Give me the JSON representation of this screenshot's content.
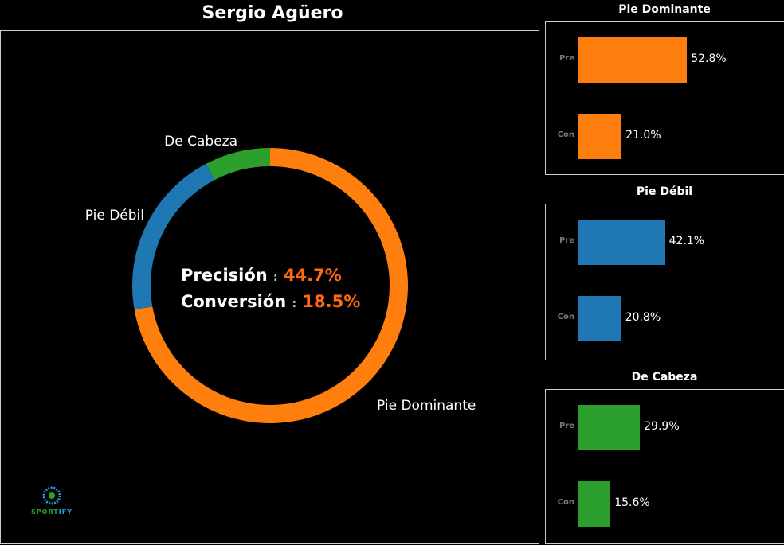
{
  "title": "Sergio Agüero",
  "colors": {
    "Pie Dominante": "#ff7f0e",
    "Pie Débil": "#1f77b4",
    "De Cabeza": "#2ca02c",
    "highlight": "#ff6a13"
  },
  "center": {
    "precision_label": "Precisión",
    "precision_value": "44.7%",
    "conversion_label": "Conversión",
    "conversion_value": "18.5%",
    "separator": ":"
  },
  "logo": {
    "text_a": "SPORT",
    "text_b": "IFY"
  },
  "chart_data": [
    {
      "type": "pie",
      "donut": true,
      "categories": [
        "Pie Dominante",
        "Pie Débil",
        "De Cabeza"
      ],
      "values": [
        72.2,
        20.1,
        7.7
      ],
      "colors": [
        "#ff7f0e",
        "#1f77b4",
        "#2ca02c"
      ]
    },
    {
      "type": "bar",
      "orientation": "horizontal",
      "title": "Pie Dominante",
      "categories": [
        "Pre",
        "Con"
      ],
      "values": [
        52.8,
        21.0
      ],
      "labels": [
        "52.8%",
        "21.0%"
      ],
      "color": "#ff7f0e",
      "xlim": [
        0,
        100
      ]
    },
    {
      "type": "bar",
      "orientation": "horizontal",
      "title": "Pie Débil",
      "categories": [
        "Pre",
        "Con"
      ],
      "values": [
        42.1,
        20.8
      ],
      "labels": [
        "42.1%",
        "20.8%"
      ],
      "color": "#1f77b4",
      "xlim": [
        0,
        100
      ]
    },
    {
      "type": "bar",
      "orientation": "horizontal",
      "title": "De Cabeza",
      "categories": [
        "Pre",
        "Con"
      ],
      "values": [
        29.9,
        15.6
      ],
      "labels": [
        "29.9%",
        "15.6%"
      ],
      "color": "#2ca02c",
      "xlim": [
        0,
        100
      ]
    }
  ]
}
